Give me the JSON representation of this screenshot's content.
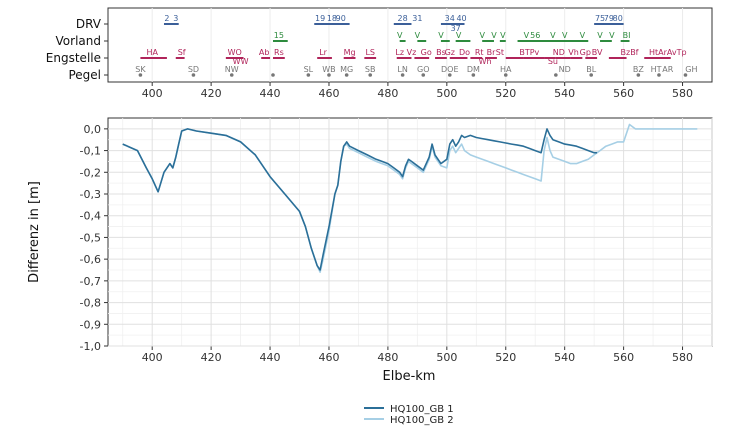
{
  "chart_data": {
    "type": "line",
    "xlabel": "Elbe-km",
    "ylabel": "Differenz in [m]",
    "xlim": [
      385,
      590
    ],
    "ylim": [
      -1.0,
      0.05
    ],
    "x_ticks": [
      400,
      420,
      440,
      460,
      480,
      500,
      520,
      540,
      560,
      580
    ],
    "y_ticks": [
      0.0,
      -0.1,
      -0.2,
      -0.3,
      -0.4,
      -0.5,
      -0.6,
      -0.7,
      -0.8,
      -0.9,
      -1.0
    ],
    "y_tick_labels": [
      "0,0",
      "-0,1",
      "-0,2",
      "-0,3",
      "-0,4",
      "-0,5",
      "-0,6",
      "-0,7",
      "-0,8",
      "-0,9",
      "-1,0"
    ],
    "grid": true,
    "legend_position": "bottom",
    "series": [
      {
        "name": "HQ100_GB 1",
        "color": "#2b6f98",
        "x": [
          390,
          395,
          398,
          400,
          402,
          404,
          406,
          407,
          408,
          409,
          410,
          412,
          415,
          420,
          425,
          430,
          435,
          440,
          445,
          450,
          452,
          454,
          456,
          457,
          458,
          460,
          462,
          463,
          464,
          465,
          466,
          467,
          470,
          473,
          476,
          478,
          480,
          482,
          484,
          485,
          486,
          487,
          488,
          490,
          492,
          494,
          495,
          496,
          498,
          500,
          501,
          502,
          503,
          504,
          505,
          506,
          508,
          510,
          512,
          514,
          516,
          518,
          520,
          522,
          524,
          526,
          528,
          530,
          532,
          533,
          534,
          535,
          536,
          538,
          540,
          542,
          544,
          546,
          548,
          550,
          551
        ],
        "y": [
          -0.07,
          -0.1,
          -0.18,
          -0.23,
          -0.29,
          -0.2,
          -0.16,
          -0.18,
          -0.13,
          -0.07,
          -0.01,
          0.0,
          -0.01,
          -0.02,
          -0.03,
          -0.06,
          -0.12,
          -0.22,
          -0.3,
          -0.38,
          -0.45,
          -0.55,
          -0.63,
          -0.65,
          -0.58,
          -0.45,
          -0.3,
          -0.26,
          -0.15,
          -0.08,
          -0.06,
          -0.08,
          -0.1,
          -0.12,
          -0.14,
          -0.15,
          -0.16,
          -0.18,
          -0.2,
          -0.22,
          -0.17,
          -0.14,
          -0.15,
          -0.17,
          -0.19,
          -0.13,
          -0.07,
          -0.12,
          -0.16,
          -0.14,
          -0.07,
          -0.05,
          -0.08,
          -0.06,
          -0.03,
          -0.04,
          -0.03,
          -0.04,
          -0.045,
          -0.05,
          -0.055,
          -0.06,
          -0.065,
          -0.07,
          -0.075,
          -0.08,
          -0.09,
          -0.1,
          -0.11,
          -0.05,
          0.0,
          -0.03,
          -0.05,
          -0.06,
          -0.07,
          -0.075,
          -0.08,
          -0.09,
          -0.1,
          -0.11,
          -0.11
        ]
      },
      {
        "name": "HQ100_GB 2",
        "color": "#a6cfe5",
        "x": [
          390,
          395,
          398,
          400,
          402,
          404,
          406,
          407,
          408,
          409,
          410,
          412,
          415,
          420,
          425,
          430,
          435,
          440,
          445,
          450,
          452,
          454,
          456,
          457,
          458,
          460,
          462,
          463,
          464,
          465,
          466,
          467,
          470,
          473,
          476,
          478,
          480,
          482,
          484,
          485,
          486,
          487,
          488,
          490,
          492,
          494,
          495,
          496,
          498,
          500,
          501,
          502,
          503,
          504,
          505,
          506,
          508,
          510,
          512,
          514,
          516,
          518,
          520,
          522,
          524,
          526,
          528,
          530,
          532,
          533,
          534,
          535,
          536,
          538,
          540,
          542,
          544,
          546,
          548,
          550,
          552,
          554,
          556,
          558,
          560,
          562,
          564,
          570,
          580,
          585
        ],
        "y": [
          -0.07,
          -0.1,
          -0.18,
          -0.23,
          -0.29,
          -0.2,
          -0.16,
          -0.18,
          -0.13,
          -0.07,
          -0.01,
          0.0,
          -0.01,
          -0.02,
          -0.03,
          -0.06,
          -0.12,
          -0.22,
          -0.3,
          -0.38,
          -0.45,
          -0.55,
          -0.63,
          -0.66,
          -0.6,
          -0.47,
          -0.3,
          -0.26,
          -0.15,
          -0.08,
          -0.07,
          -0.09,
          -0.11,
          -0.13,
          -0.15,
          -0.16,
          -0.17,
          -0.19,
          -0.21,
          -0.23,
          -0.18,
          -0.15,
          -0.16,
          -0.18,
          -0.2,
          -0.14,
          -0.08,
          -0.13,
          -0.17,
          -0.18,
          -0.1,
          -0.08,
          -0.11,
          -0.09,
          -0.07,
          -0.1,
          -0.12,
          -0.13,
          -0.14,
          -0.15,
          -0.16,
          -0.17,
          -0.18,
          -0.19,
          -0.2,
          -0.21,
          -0.22,
          -0.23,
          -0.24,
          -0.1,
          -0.04,
          -0.1,
          -0.13,
          -0.14,
          -0.15,
          -0.16,
          -0.16,
          -0.15,
          -0.14,
          -0.12,
          -0.1,
          -0.08,
          -0.07,
          -0.06,
          -0.06,
          0.02,
          0.0,
          0.0,
          0.0,
          0.0
        ]
      }
    ],
    "tracks": [
      {
        "name": "DRV",
        "color": "#3b5f99",
        "segments": [
          [
            404,
            409
          ],
          [
            455,
            467
          ],
          [
            482,
            488
          ],
          [
            498,
            506
          ],
          [
            550,
            560
          ]
        ],
        "labels": [
          {
            "text": "2",
            "x": 405
          },
          {
            "text": "3",
            "x": 408
          },
          {
            "text": "19",
            "x": 457
          },
          {
            "text": "18",
            "x": 461
          },
          {
            "text": "90",
            "x": 464
          },
          {
            "text": "28",
            "x": 485
          },
          {
            "text": "31",
            "x": 490
          },
          {
            "text": "34",
            "x": 501
          },
          {
            "text": "40",
            "x": 505
          },
          {
            "text": "37",
            "x": 503
          },
          {
            "text": "75",
            "x": 552
          },
          {
            "text": "79",
            "x": 555
          },
          {
            "text": "80",
            "x": 558
          }
        ]
      },
      {
        "name": "Vorland",
        "color": "#2e8b3e",
        "segments": [
          [
            441,
            446
          ],
          [
            484,
            486
          ],
          [
            490,
            493
          ],
          [
            498,
            501
          ],
          [
            503,
            508
          ],
          [
            512,
            516
          ],
          [
            518,
            520
          ],
          [
            524,
            548
          ],
          [
            552,
            556
          ],
          [
            559,
            562
          ]
        ],
        "labels": [
          {
            "text": "15",
            "x": 443
          },
          {
            "text": "V",
            "x": 484
          },
          {
            "text": "V",
            "x": 490
          },
          {
            "text": "V",
            "x": 498
          },
          {
            "text": "V",
            "x": 504
          },
          {
            "text": "V",
            "x": 512
          },
          {
            "text": "V",
            "x": 516
          },
          {
            "text": "V",
            "x": 519
          },
          {
            "text": "V",
            "x": 527
          },
          {
            "text": "56",
            "x": 530
          },
          {
            "text": "V",
            "x": 536
          },
          {
            "text": "V",
            "x": 540
          },
          {
            "text": "V",
            "x": 546
          },
          {
            "text": "V",
            "x": 552
          },
          {
            "text": "V",
            "x": 556
          },
          {
            "text": "BI",
            "x": 561
          }
        ]
      },
      {
        "name": "Engstelle",
        "color": "#b0245a",
        "segments": [
          [
            396,
            405
          ],
          [
            408,
            411
          ],
          [
            425,
            431
          ],
          [
            437,
            440
          ],
          [
            441,
            445
          ],
          [
            456,
            461
          ],
          [
            465,
            469
          ],
          [
            472,
            476
          ],
          [
            483,
            488
          ],
          [
            489,
            494
          ],
          [
            496,
            500
          ],
          [
            501,
            507
          ],
          [
            508,
            512
          ],
          [
            513,
            517
          ],
          [
            520,
            526
          ],
          [
            526,
            533
          ],
          [
            533,
            537
          ],
          [
            537,
            542
          ],
          [
            542,
            546
          ],
          [
            547,
            551
          ],
          [
            555,
            561
          ],
          [
            567,
            576
          ]
        ],
        "labels": [
          {
            "text": "HA",
            "x": 400
          },
          {
            "text": "Sf",
            "x": 410
          },
          {
            "text": "WO",
            "x": 428
          },
          {
            "text": "WW",
            "x": 430
          },
          {
            "text": "Ab",
            "x": 438
          },
          {
            "text": "Rs",
            "x": 443
          },
          {
            "text": "Lr",
            "x": 458
          },
          {
            "text": "Mg",
            "x": 467
          },
          {
            "text": "LS",
            "x": 474
          },
          {
            "text": "Lz",
            "x": 484
          },
          {
            "text": "Vz",
            "x": 488
          },
          {
            "text": "Go",
            "x": 493
          },
          {
            "text": "Bs",
            "x": 498
          },
          {
            "text": "Gz",
            "x": 501
          },
          {
            "text": "Do",
            "x": 506
          },
          {
            "text": "Rt",
            "x": 511
          },
          {
            "text": "Br",
            "x": 515
          },
          {
            "text": "St",
            "x": 518
          },
          {
            "text": "Wh",
            "x": 513
          },
          {
            "text": "BTPv",
            "x": 528
          },
          {
            "text": "ND",
            "x": 538
          },
          {
            "text": "Su",
            "x": 536
          },
          {
            "text": "Vh",
            "x": 543
          },
          {
            "text": "Gp",
            "x": 547
          },
          {
            "text": "BV",
            "x": 551
          },
          {
            "text": "BzBf",
            "x": 562
          },
          {
            "text": "HtArAvTp",
            "x": 575
          }
        ]
      },
      {
        "name": "Pegel",
        "color": "#777777",
        "points": [
          396,
          414,
          427,
          441,
          453,
          460,
          466,
          474,
          485,
          492,
          501,
          509,
          520,
          537,
          549,
          565,
          572,
          581
        ],
        "labels": [
          {
            "text": "SK",
            "x": 396
          },
          {
            "text": "SD",
            "x": 414
          },
          {
            "text": "NW",
            "x": 427
          },
          {
            "text": "SL",
            "x": 453
          },
          {
            "text": "WB",
            "x": 460
          },
          {
            "text": "MG",
            "x": 466
          },
          {
            "text": "SB",
            "x": 474
          },
          {
            "text": "LN",
            "x": 485
          },
          {
            "text": "GO",
            "x": 492
          },
          {
            "text": "DOE",
            "x": 501
          },
          {
            "text": "DM",
            "x": 509
          },
          {
            "text": "HA",
            "x": 520
          },
          {
            "text": "ND",
            "x": 540
          },
          {
            "text": "BL",
            "x": 549
          },
          {
            "text": "BZ",
            "x": 565
          },
          {
            "text": "HT",
            "x": 571
          },
          {
            "text": "AR",
            "x": 575
          },
          {
            "text": "GH",
            "x": 583
          }
        ]
      }
    ],
    "top_x_ticks": [
      400,
      420,
      440,
      460,
      480,
      500,
      520,
      540,
      560,
      580
    ]
  }
}
